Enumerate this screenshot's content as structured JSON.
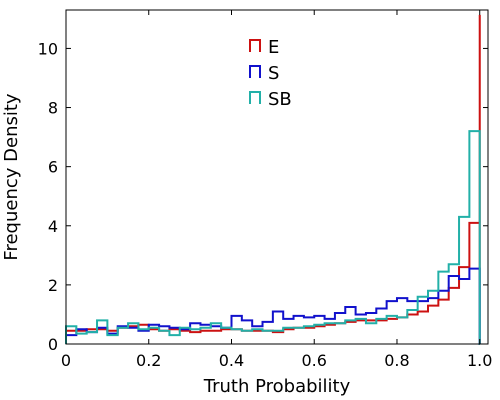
{
  "chart_data": {
    "type": "histogram",
    "xlabel": "Truth Probability",
    "ylabel": "Frequency Density",
    "xlim": [
      0,
      1.02
    ],
    "ylim": [
      0,
      11.3
    ],
    "xticks": [
      0,
      0.2,
      0.4,
      0.6,
      0.8,
      1.0
    ],
    "yticks": [
      0,
      2,
      4,
      6,
      8,
      10
    ],
    "grid": false,
    "legend_position": "top-center",
    "bins": [
      0.0,
      0.025,
      0.05,
      0.075,
      0.1,
      0.125,
      0.15,
      0.175,
      0.2,
      0.225,
      0.25,
      0.275,
      0.3,
      0.325,
      0.35,
      0.375,
      0.4,
      0.425,
      0.45,
      0.475,
      0.5,
      0.525,
      0.55,
      0.575,
      0.6,
      0.625,
      0.65,
      0.675,
      0.7,
      0.725,
      0.75,
      0.775,
      0.8,
      0.825,
      0.85,
      0.875,
      0.9,
      0.925,
      0.95,
      0.975,
      1.0
    ],
    "series": [
      {
        "name": "E",
        "color": "#cc1111",
        "values": [
          0.45,
          0.45,
          0.5,
          0.5,
          0.45,
          0.55,
          0.6,
          0.65,
          0.5,
          0.45,
          0.5,
          0.45,
          0.4,
          0.45,
          0.45,
          0.5,
          0.5,
          0.45,
          0.45,
          0.45,
          0.4,
          0.5,
          0.55,
          0.55,
          0.6,
          0.65,
          0.7,
          0.75,
          0.8,
          0.8,
          0.8,
          0.85,
          0.9,
          1.0,
          1.1,
          1.3,
          1.5,
          1.9,
          2.6,
          4.1,
          11.1
        ]
      },
      {
        "name": "S",
        "color": "#1111cc",
        "values": [
          0.3,
          0.5,
          0.4,
          0.55,
          0.35,
          0.6,
          0.55,
          0.45,
          0.65,
          0.6,
          0.55,
          0.5,
          0.7,
          0.65,
          0.6,
          0.55,
          0.95,
          0.8,
          0.6,
          0.75,
          1.1,
          0.85,
          0.95,
          0.9,
          0.95,
          0.85,
          1.05,
          1.25,
          1.0,
          1.05,
          1.2,
          1.45,
          1.55,
          1.45,
          1.45,
          1.55,
          1.8,
          2.3,
          2.2,
          2.55,
          0.0
        ]
      },
      {
        "name": "SB",
        "color": "#22b0a8",
        "values": [
          0.6,
          0.35,
          0.4,
          0.8,
          0.3,
          0.55,
          0.7,
          0.5,
          0.55,
          0.45,
          0.3,
          0.55,
          0.5,
          0.55,
          0.7,
          0.55,
          0.5,
          0.45,
          0.5,
          0.45,
          0.45,
          0.55,
          0.55,
          0.6,
          0.65,
          0.7,
          0.7,
          0.8,
          0.85,
          0.7,
          0.85,
          0.95,
          0.9,
          1.15,
          1.6,
          1.8,
          2.45,
          2.7,
          4.3,
          7.2,
          0.0
        ]
      }
    ]
  }
}
